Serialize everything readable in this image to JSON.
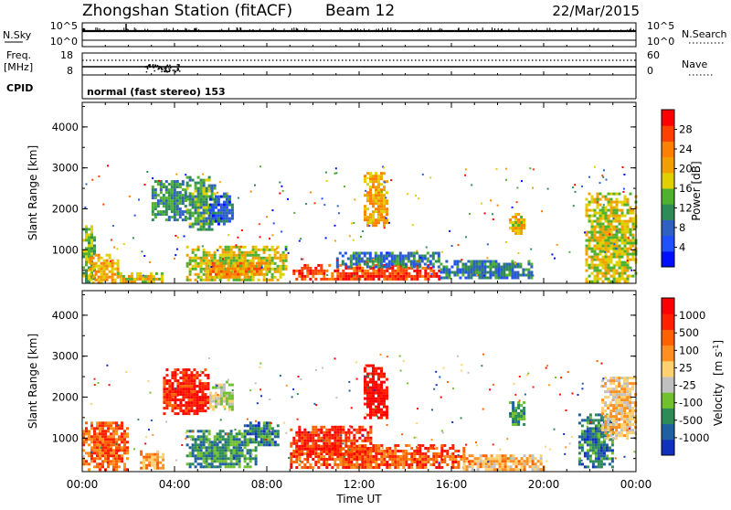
{
  "header": {
    "title": "Zhongshan Station (fitACF)",
    "beam": "Beam 12",
    "date": "22/Mar/2015"
  },
  "nsky_panel": {
    "left_label": "N.Sky",
    "right_label": "N.Search",
    "left_ticks": [
      "10^5",
      "10^0"
    ],
    "right_ticks": [
      "10^5",
      "10^0"
    ]
  },
  "freq_panel": {
    "left_label": "Freq.",
    "left_unit": "[MHz]",
    "left_ticks": [
      "18",
      "8"
    ],
    "right_label": "Nave",
    "right_ticks": [
      "60",
      "0"
    ]
  },
  "cpid_panel": {
    "label": "CPID",
    "mode": "normal (fast stereo) 153"
  },
  "chart_data": [
    {
      "type": "heatmap",
      "quantity": "Power",
      "ylabel": "Slant Range [km]",
      "y_ticks": [
        "1000",
        "2000",
        "3000",
        "4000"
      ],
      "ylim": [
        180,
        4600
      ],
      "colorbar_label": "Power [dB]",
      "colorbar_ticks": [
        "4",
        "8",
        "12",
        "16",
        "20",
        "24",
        "28"
      ],
      "colorbar_colors": [
        "#0010ff",
        "#2050ff",
        "#3060c0",
        "#2e8b57",
        "#50b030",
        "#e0d000",
        "#f0a000",
        "#ff8000",
        "#ff4000",
        "#ff0000"
      ],
      "blobs": [
        {
          "t": [
            0.0,
            0.5
          ],
          "r": [
            200,
            1600
          ],
          "level": 0.45
        },
        {
          "t": [
            0.3,
            1.5
          ],
          "r": [
            200,
            900
          ],
          "level": 0.65
        },
        {
          "t": [
            1.5,
            3.5
          ],
          "r": [
            200,
            450
          ],
          "level": 0.6
        },
        {
          "t": [
            3.0,
            4.5
          ],
          "r": [
            1700,
            2700
          ],
          "level": 0.35
        },
        {
          "t": [
            4.5,
            5.8
          ],
          "r": [
            1500,
            2800
          ],
          "level": 0.4
        },
        {
          "t": [
            4.5,
            8.8
          ],
          "r": [
            250,
            1100
          ],
          "level": 0.55
        },
        {
          "t": [
            5.5,
            8.0
          ],
          "r": [
            350,
            700
          ],
          "level": 0.7
        },
        {
          "t": [
            5.5,
            6.5
          ],
          "r": [
            1600,
            2400
          ],
          "level": 0.2
        },
        {
          "t": [
            9.0,
            15.5
          ],
          "r": [
            250,
            650
          ],
          "level": 0.85
        },
        {
          "t": [
            11.0,
            15.5
          ],
          "r": [
            600,
            950
          ],
          "level": 0.3
        },
        {
          "t": [
            12.2,
            13.2
          ],
          "r": [
            1600,
            2900
          ],
          "level": 0.65
        },
        {
          "t": [
            15.5,
            19.5
          ],
          "r": [
            300,
            750
          ],
          "level": 0.3
        },
        {
          "t": [
            18.5,
            19.2
          ],
          "r": [
            1400,
            1900
          ],
          "level": 0.6
        },
        {
          "t": [
            21.8,
            24.0
          ],
          "r": [
            200,
            2400
          ],
          "level": 0.55
        }
      ]
    },
    {
      "type": "heatmap",
      "quantity": "Velocity",
      "ylabel": "Slant Range [km]",
      "y_ticks": [
        "1000",
        "2000",
        "3000",
        "4000"
      ],
      "ylim": [
        180,
        4600
      ],
      "colorbar_label": "Velocity [m s^-1]",
      "colorbar_label_main": "Velocity",
      "colorbar_label_unit": "[m s",
      "colorbar_label_sup": "-1",
      "colorbar_label_close": "]",
      "colorbar_ticks": [
        "1000",
        "500",
        "100",
        "25",
        "-25",
        "-100",
        "-500",
        "-1000"
      ],
      "colorbar_colors": [
        "#1030c0",
        "#2060a0",
        "#2e8b57",
        "#70c030",
        "#c0c0c0",
        "#ffd070",
        "#ff9020",
        "#ff6000",
        "#ff2000",
        "#ff0000"
      ],
      "blobs": [
        {
          "t": [
            0.0,
            2.0
          ],
          "r": [
            200,
            1400
          ],
          "level": 0.75
        },
        {
          "t": [
            2.5,
            3.5
          ],
          "r": [
            250,
            700
          ],
          "level": 0.65
        },
        {
          "t": [
            3.5,
            5.5
          ],
          "r": [
            1600,
            2700
          ],
          "level": 0.9
        },
        {
          "t": [
            4.5,
            7.5
          ],
          "r": [
            300,
            1200
          ],
          "level": 0.25
        },
        {
          "t": [
            5.5,
            6.5
          ],
          "r": [
            1700,
            2400
          ],
          "level": 0.45
        },
        {
          "t": [
            7.0,
            8.5
          ],
          "r": [
            800,
            1400
          ],
          "level": 0.2
        },
        {
          "t": [
            9.0,
            16.5
          ],
          "r": [
            250,
            850
          ],
          "level": 0.78
        },
        {
          "t": [
            9.0,
            12.5
          ],
          "r": [
            600,
            1300
          ],
          "level": 0.85
        },
        {
          "t": [
            12.2,
            13.2
          ],
          "r": [
            1500,
            2800
          ],
          "level": 0.95
        },
        {
          "t": [
            16.5,
            20.0
          ],
          "r": [
            250,
            600
          ],
          "level": 0.6
        },
        {
          "t": [
            18.5,
            19.2
          ],
          "r": [
            1300,
            1900
          ],
          "level": 0.25
        },
        {
          "t": [
            21.5,
            23.0
          ],
          "r": [
            300,
            1600
          ],
          "level": 0.2
        },
        {
          "t": [
            22.5,
            24.0
          ],
          "r": [
            1000,
            2500
          ],
          "level": 0.55
        }
      ]
    }
  ],
  "time_axis": {
    "ticks": [
      "00:00",
      "04:00",
      "08:00",
      "12:00",
      "16:00",
      "20:00",
      "00:00"
    ],
    "xlabel": "Time UT",
    "range_hours": [
      0,
      24
    ]
  }
}
